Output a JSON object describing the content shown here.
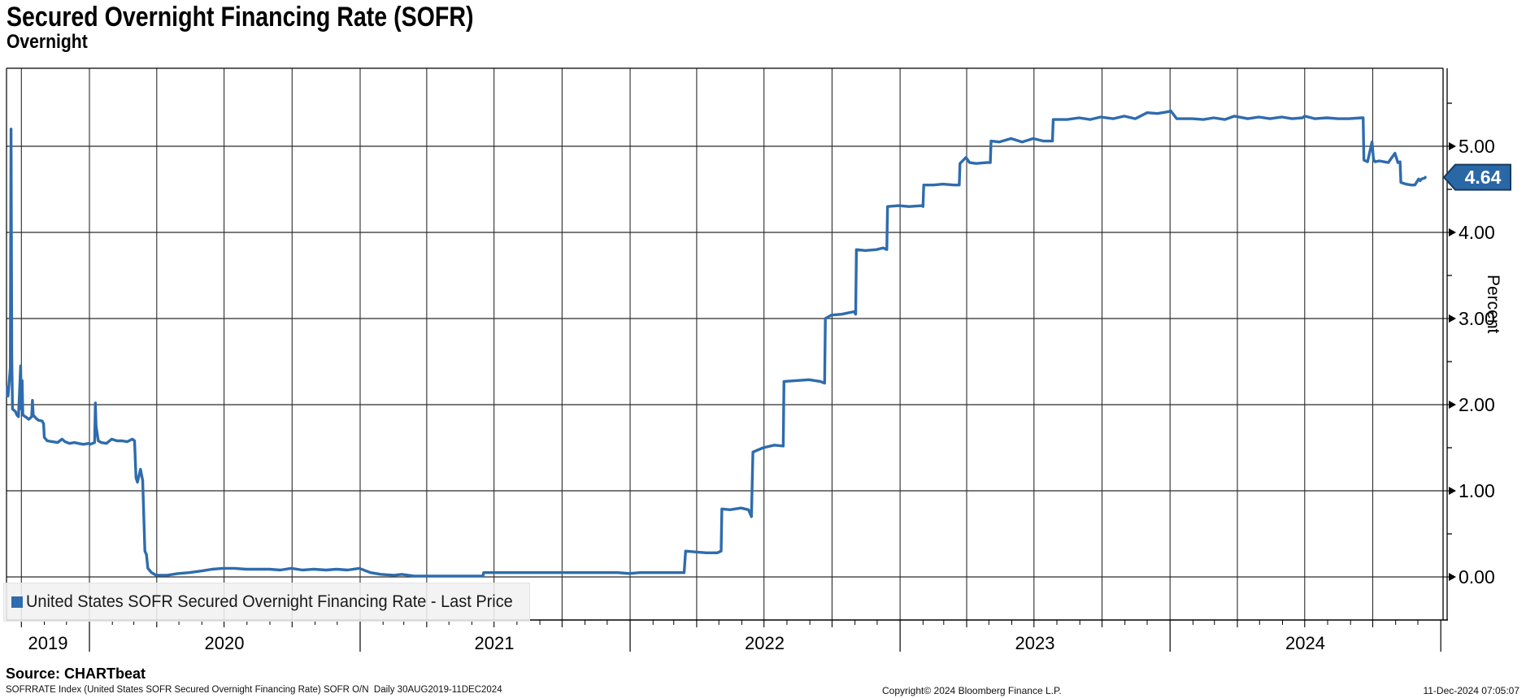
{
  "header": {
    "title": "Secured Overnight Financing Rate (SOFR)",
    "subtitle": "Overnight"
  },
  "legend": {
    "label": "United States SOFR Secured Overnight Financing Rate - Last Price",
    "marker_color": "#2e6cad",
    "background": "#f1f1f1"
  },
  "badge": {
    "value": "4.64",
    "fill": "#2a67a5",
    "border": "#173a5e",
    "text_color": "#ffffff"
  },
  "footer": {
    "source": "Source: CHARTbeat",
    "description": "SOFRRATE Index (United States SOFR Secured Overnight Financing Rate) SOFR O/N  Daily 30AUG2019-11DEC2024",
    "copyright": "Copyright© 2024 Bloomberg Finance L.P.",
    "datetime": "11-Dec-2024 07:05:07"
  },
  "colors": {
    "line": "#2e6cad",
    "grid": "#2b2b2b",
    "axis": "#000000",
    "background": "#ffffff"
  },
  "chart_data": {
    "type": "line",
    "title": "Secured Overnight Financing Rate (SOFR)",
    "xlabel": "",
    "ylabel": "Percent",
    "ylim": [
      -0.5,
      5.9
    ],
    "x_range": [
      "2019-08-30",
      "2025-01-01"
    ],
    "grid": "quarterly vertical lines, 1.00-step horizontal lines",
    "legend_position": "bottom-left",
    "y_ticks": [
      {
        "value": 0,
        "label": "0.00"
      },
      {
        "value": 1,
        "label": "1.00"
      },
      {
        "value": 2,
        "label": "2.00"
      },
      {
        "value": 3,
        "label": "3.00"
      },
      {
        "value": 4,
        "label": "4.00"
      },
      {
        "value": 5,
        "label": "5.00"
      }
    ],
    "y_minor_ticks": [
      0.5,
      1.5,
      2.5,
      3.5,
      4.5,
      5.5
    ],
    "x_year_labels": [
      "2019",
      "2020",
      "2021",
      "2022",
      "2023",
      "2024"
    ],
    "last_price": 4.64,
    "series": [
      {
        "name": "United States SOFR Secured Overnight Financing Rate - Last Price",
        "color": "#2e6cad",
        "points": [
          [
            "2019-09-03",
            2.2
          ],
          [
            "2019-09-05",
            2.1
          ],
          [
            "2019-09-09",
            2.16
          ],
          [
            "2019-09-12",
            2.12
          ],
          [
            "2019-09-13",
            2.1
          ],
          [
            "2019-09-16",
            2.43
          ],
          [
            "2019-09-17",
            5.2
          ],
          [
            "2019-09-18",
            2.55
          ],
          [
            "2019-09-19",
            1.95
          ],
          [
            "2019-09-23",
            1.92
          ],
          [
            "2019-09-25",
            1.88
          ],
          [
            "2019-09-27",
            1.86
          ],
          [
            "2019-09-30",
            2.45
          ],
          [
            "2019-10-01",
            1.95
          ],
          [
            "2019-10-02",
            2.28
          ],
          [
            "2019-10-03",
            1.88
          ],
          [
            "2019-10-08",
            1.85
          ],
          [
            "2019-10-11",
            1.83
          ],
          [
            "2019-10-15",
            1.86
          ],
          [
            "2019-10-16",
            2.05
          ],
          [
            "2019-10-17",
            1.88
          ],
          [
            "2019-10-21",
            1.84
          ],
          [
            "2019-10-24",
            1.82
          ],
          [
            "2019-10-29",
            1.81
          ],
          [
            "2019-10-31",
            1.78
          ],
          [
            "2019-11-01",
            1.62
          ],
          [
            "2019-11-05",
            1.58
          ],
          [
            "2019-11-12",
            1.57
          ],
          [
            "2019-11-19",
            1.56
          ],
          [
            "2019-11-25",
            1.6
          ],
          [
            "2019-11-29",
            1.57
          ],
          [
            "2019-12-05",
            1.55
          ],
          [
            "2019-12-12",
            1.56
          ],
          [
            "2019-12-17",
            1.55
          ],
          [
            "2019-12-24",
            1.54
          ],
          [
            "2019-12-31",
            1.55
          ],
          [
            "2020-01-02",
            1.54
          ],
          [
            "2020-01-08",
            1.56
          ],
          [
            "2020-01-09",
            2.02
          ],
          [
            "2020-01-10",
            1.75
          ],
          [
            "2020-01-13",
            1.58
          ],
          [
            "2020-01-17",
            1.56
          ],
          [
            "2020-01-24",
            1.55
          ],
          [
            "2020-01-31",
            1.6
          ],
          [
            "2020-02-07",
            1.58
          ],
          [
            "2020-02-14",
            1.58
          ],
          [
            "2020-02-21",
            1.57
          ],
          [
            "2020-02-28",
            1.6
          ],
          [
            "2020-03-02",
            1.58
          ],
          [
            "2020-03-04",
            1.15
          ],
          [
            "2020-03-06",
            1.1
          ],
          [
            "2020-03-10",
            1.25
          ],
          [
            "2020-03-13",
            1.12
          ],
          [
            "2020-03-16",
            0.3
          ],
          [
            "2020-03-18",
            0.26
          ],
          [
            "2020-03-20",
            0.1
          ],
          [
            "2020-03-25",
            0.05
          ],
          [
            "2020-03-31",
            0.02
          ],
          [
            "2020-04-15",
            0.02
          ],
          [
            "2020-04-30",
            0.04
          ],
          [
            "2020-05-15",
            0.05
          ],
          [
            "2020-06-01",
            0.07
          ],
          [
            "2020-06-15",
            0.09
          ],
          [
            "2020-06-30",
            0.1
          ],
          [
            "2020-07-15",
            0.1
          ],
          [
            "2020-07-31",
            0.09
          ],
          [
            "2020-08-14",
            0.09
          ],
          [
            "2020-08-31",
            0.09
          ],
          [
            "2020-09-15",
            0.08
          ],
          [
            "2020-09-30",
            0.1
          ],
          [
            "2020-10-15",
            0.08
          ],
          [
            "2020-10-30",
            0.09
          ],
          [
            "2020-11-16",
            0.08
          ],
          [
            "2020-11-30",
            0.09
          ],
          [
            "2020-12-15",
            0.08
          ],
          [
            "2020-12-31",
            0.1
          ],
          [
            "2021-01-15",
            0.05
          ],
          [
            "2021-01-29",
            0.03
          ],
          [
            "2021-02-16",
            0.02
          ],
          [
            "2021-02-26",
            0.03
          ],
          [
            "2021-03-15",
            0.01
          ],
          [
            "2021-03-31",
            0.01
          ],
          [
            "2021-04-15",
            0.01
          ],
          [
            "2021-04-30",
            0.01
          ],
          [
            "2021-05-14",
            0.01
          ],
          [
            "2021-05-28",
            0.01
          ],
          [
            "2021-06-16",
            0.01
          ],
          [
            "2021-06-17",
            0.05
          ],
          [
            "2021-06-30",
            0.05
          ],
          [
            "2021-07-15",
            0.05
          ],
          [
            "2021-07-30",
            0.05
          ],
          [
            "2021-08-16",
            0.05
          ],
          [
            "2021-08-31",
            0.05
          ],
          [
            "2021-09-15",
            0.05
          ],
          [
            "2021-09-30",
            0.05
          ],
          [
            "2021-10-15",
            0.05
          ],
          [
            "2021-10-29",
            0.05
          ],
          [
            "2021-11-15",
            0.05
          ],
          [
            "2021-11-30",
            0.05
          ],
          [
            "2021-12-15",
            0.05
          ],
          [
            "2021-12-31",
            0.04
          ],
          [
            "2022-01-14",
            0.05
          ],
          [
            "2022-01-31",
            0.05
          ],
          [
            "2022-02-15",
            0.05
          ],
          [
            "2022-02-28",
            0.05
          ],
          [
            "2022-03-15",
            0.05
          ],
          [
            "2022-03-17",
            0.3
          ],
          [
            "2022-03-31",
            0.29
          ],
          [
            "2022-04-14",
            0.28
          ],
          [
            "2022-04-29",
            0.28
          ],
          [
            "2022-05-04",
            0.3
          ],
          [
            "2022-05-05",
            0.79
          ],
          [
            "2022-05-16",
            0.78
          ],
          [
            "2022-05-31",
            0.8
          ],
          [
            "2022-06-10",
            0.78
          ],
          [
            "2022-06-14",
            0.7
          ],
          [
            "2022-06-16",
            1.45
          ],
          [
            "2022-06-30",
            1.5
          ],
          [
            "2022-07-15",
            1.53
          ],
          [
            "2022-07-27",
            1.52
          ],
          [
            "2022-07-28",
            2.27
          ],
          [
            "2022-08-15",
            2.28
          ],
          [
            "2022-08-31",
            2.29
          ],
          [
            "2022-09-15",
            2.27
          ],
          [
            "2022-09-21",
            2.25
          ],
          [
            "2022-09-22",
            3.0
          ],
          [
            "2022-09-30",
            3.04
          ],
          [
            "2022-10-14",
            3.05
          ],
          [
            "2022-10-31",
            3.08
          ],
          [
            "2022-11-02",
            3.05
          ],
          [
            "2022-11-03",
            3.8
          ],
          [
            "2022-11-15",
            3.79
          ],
          [
            "2022-11-30",
            3.8
          ],
          [
            "2022-12-09",
            3.82
          ],
          [
            "2022-12-14",
            3.8
          ],
          [
            "2022-12-15",
            4.3
          ],
          [
            "2022-12-30",
            4.31
          ],
          [
            "2023-01-13",
            4.3
          ],
          [
            "2023-01-31",
            4.31
          ],
          [
            "2023-02-01",
            4.3
          ],
          [
            "2023-02-02",
            4.55
          ],
          [
            "2023-02-15",
            4.55
          ],
          [
            "2023-02-28",
            4.56
          ],
          [
            "2023-03-15",
            4.55
          ],
          [
            "2023-03-22",
            4.55
          ],
          [
            "2023-03-23",
            4.8
          ],
          [
            "2023-03-31",
            4.87
          ],
          [
            "2023-04-05",
            4.81
          ],
          [
            "2023-04-14",
            4.8
          ],
          [
            "2023-04-28",
            4.81
          ],
          [
            "2023-05-03",
            4.81
          ],
          [
            "2023-05-04",
            5.06
          ],
          [
            "2023-05-15",
            5.05
          ],
          [
            "2023-05-31",
            5.09
          ],
          [
            "2023-06-15",
            5.05
          ],
          [
            "2023-06-30",
            5.09
          ],
          [
            "2023-07-14",
            5.06
          ],
          [
            "2023-07-26",
            5.06
          ],
          [
            "2023-07-27",
            5.31
          ],
          [
            "2023-08-15",
            5.31
          ],
          [
            "2023-08-31",
            5.33
          ],
          [
            "2023-09-15",
            5.31
          ],
          [
            "2023-09-29",
            5.34
          ],
          [
            "2023-10-16",
            5.32
          ],
          [
            "2023-10-31",
            5.35
          ],
          [
            "2023-11-15",
            5.32
          ],
          [
            "2023-12-01",
            5.39
          ],
          [
            "2023-12-15",
            5.38
          ],
          [
            "2023-12-29",
            5.4
          ],
          [
            "2024-01-02",
            5.41
          ],
          [
            "2024-01-10",
            5.32
          ],
          [
            "2024-01-31",
            5.32
          ],
          [
            "2024-02-15",
            5.31
          ],
          [
            "2024-02-29",
            5.33
          ],
          [
            "2024-03-15",
            5.31
          ],
          [
            "2024-03-28",
            5.35
          ],
          [
            "2024-04-15",
            5.32
          ],
          [
            "2024-04-30",
            5.34
          ],
          [
            "2024-05-15",
            5.32
          ],
          [
            "2024-05-31",
            5.34
          ],
          [
            "2024-06-14",
            5.32
          ],
          [
            "2024-06-28",
            5.33
          ],
          [
            "2024-07-01",
            5.35
          ],
          [
            "2024-07-15",
            5.32
          ],
          [
            "2024-07-31",
            5.33
          ],
          [
            "2024-08-15",
            5.32
          ],
          [
            "2024-08-30",
            5.32
          ],
          [
            "2024-09-16",
            5.33
          ],
          [
            "2024-09-18",
            5.33
          ],
          [
            "2024-09-19",
            4.84
          ],
          [
            "2024-09-24",
            4.82
          ],
          [
            "2024-09-30",
            5.05
          ],
          [
            "2024-10-02",
            4.85
          ],
          [
            "2024-10-04",
            4.82
          ],
          [
            "2024-10-10",
            4.83
          ],
          [
            "2024-10-16",
            4.82
          ],
          [
            "2024-10-22",
            4.81
          ],
          [
            "2024-10-31",
            4.92
          ],
          [
            "2024-11-04",
            4.81
          ],
          [
            "2024-11-07",
            4.82
          ],
          [
            "2024-11-08",
            4.58
          ],
          [
            "2024-11-15",
            4.56
          ],
          [
            "2024-11-22",
            4.55
          ],
          [
            "2024-11-27",
            4.55
          ],
          [
            "2024-12-02",
            4.62
          ],
          [
            "2024-12-04",
            4.6
          ],
          [
            "2024-12-06",
            4.62
          ],
          [
            "2024-12-10",
            4.63
          ],
          [
            "2024-12-11",
            4.64
          ]
        ]
      }
    ]
  }
}
